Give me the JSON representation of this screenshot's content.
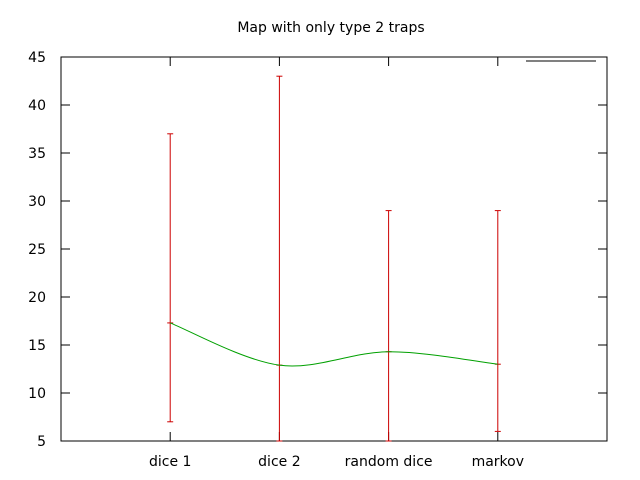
{
  "chart_data": {
    "type": "line",
    "title": "Map with only type 2 traps",
    "xlabel": "",
    "ylabel": "",
    "categories": [
      "dice 1",
      "dice 2",
      "random dice",
      "markov"
    ],
    "x_range": [
      0,
      5
    ],
    "ylim": [
      5,
      45
    ],
    "yticks": [
      5,
      10,
      15,
      20,
      25,
      30,
      35,
      40,
      45
    ],
    "grid": false,
    "legend": "top-right",
    "series": [
      {
        "color": "#00a000",
        "smoothed": true,
        "values": [
          17.3,
          12.9,
          14.3,
          13.0
        ]
      }
    ],
    "error_bars": {
      "color": "#cc0000",
      "low": [
        7,
        5,
        5,
        6
      ],
      "high": [
        37,
        43,
        29,
        29
      ]
    }
  }
}
